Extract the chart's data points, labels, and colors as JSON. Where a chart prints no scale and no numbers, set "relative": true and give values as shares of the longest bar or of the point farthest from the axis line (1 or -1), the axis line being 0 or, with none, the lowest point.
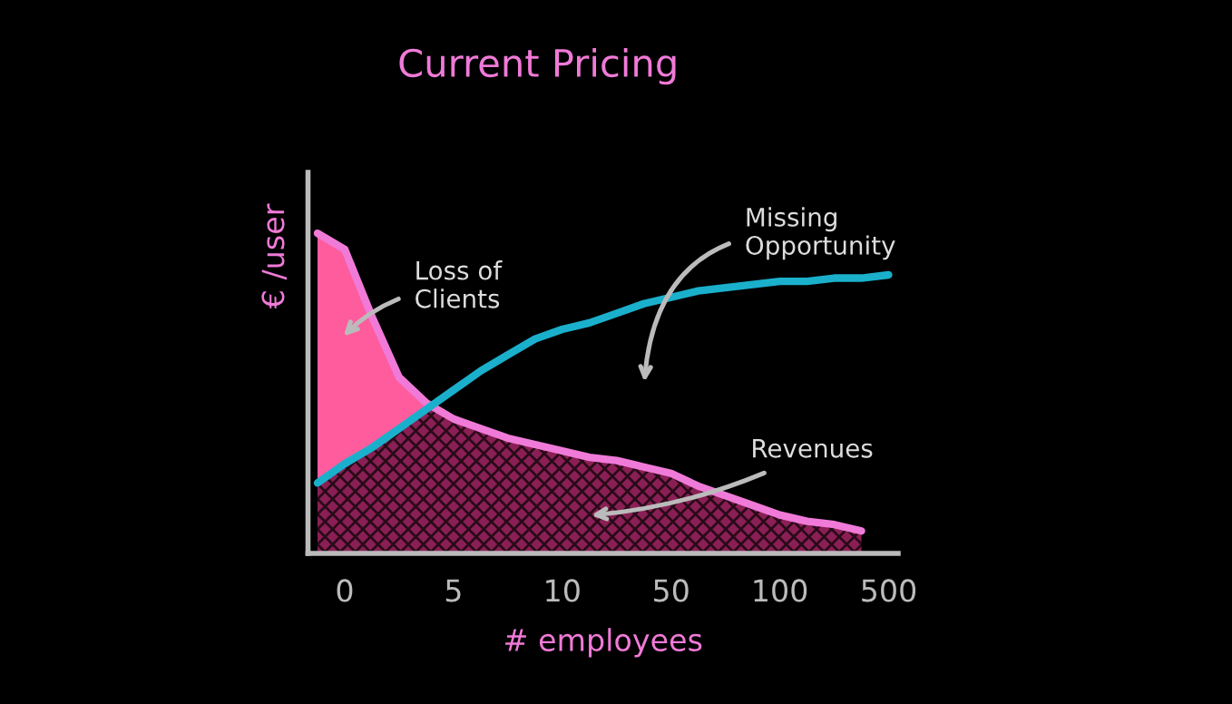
{
  "chart_data": {
    "type": "line",
    "title": "Current Pricing",
    "xlabel": "# employees",
    "ylabel": "€ /user",
    "relative": true,
    "categories": [
      null,
      "0",
      null,
      null,
      null,
      "5",
      null,
      null,
      null,
      "10",
      null,
      null,
      null,
      "50",
      null,
      null,
      null,
      "100",
      null,
      null,
      null,
      "500"
    ],
    "series": [
      {
        "type": "area",
        "color": "#f07ad8",
        "values": [
          1.0,
          0.95,
          0.74,
          0.55,
          0.47,
          0.42,
          0.39,
          0.36,
          0.34,
          0.32,
          0.3,
          0.29,
          0.27,
          0.25,
          0.21,
          0.18,
          0.15,
          0.12,
          0.1,
          0.09,
          0.07,
          null
        ],
        "upper": [
          1.0,
          0.95,
          0.74,
          0.55,
          0.47,
          null,
          null,
          null,
          null,
          null,
          null,
          null,
          null,
          null,
          null,
          null,
          null,
          null,
          null,
          null,
          null,
          null
        ],
        "lower": [
          0.22,
          0.28,
          0.33,
          0.39,
          0.45,
          null,
          null,
          null,
          null,
          null,
          null,
          null,
          null,
          null,
          null,
          null,
          null,
          null,
          null,
          null,
          null,
          null
        ]
      },
      {
        "color": "#1ab0cc",
        "values": [
          0.22,
          0.28,
          0.33,
          0.39,
          0.45,
          0.51,
          0.57,
          0.62,
          0.67,
          0.7,
          0.72,
          0.75,
          0.78,
          0.8,
          0.82,
          0.83,
          0.84,
          0.85,
          0.85,
          0.86,
          0.86,
          0.87
        ]
      }
    ],
    "annotations": [
      "Loss of\nClients",
      "Missing\nOpportunity",
      "Revenues"
    ],
    "legend": false,
    "grid": false
  }
}
